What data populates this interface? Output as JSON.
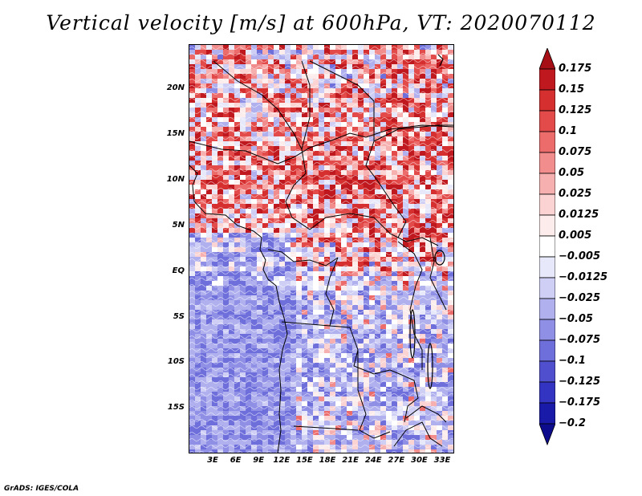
{
  "title": "Vertical velocity [m/s] at 600hPa, VT: 2020070112",
  "credit": "GrADS: IGES/COLA",
  "map": {
    "lat_labels": [
      "20N",
      "15N",
      "10N",
      "5N",
      "EQ",
      "5S",
      "10S",
      "15S"
    ],
    "lon_labels": [
      "3E",
      "6E",
      "9E",
      "12E",
      "15E",
      "18E",
      "21E",
      "24E",
      "27E",
      "30E",
      "33E"
    ]
  },
  "colorbar": {
    "labels": [
      "0.175",
      "0.15",
      "0.125",
      "0.1",
      "0.075",
      "0.05",
      "0.025",
      "0.0125",
      "0.005",
      "−0.005",
      "−0.0125",
      "−0.025",
      "−0.05",
      "−0.075",
      "−0.1",
      "−0.125",
      "−0.175",
      "−0.2"
    ],
    "colors": [
      "#a50f15",
      "#c0181f",
      "#d62f2f",
      "#e34a4a",
      "#ec6b6b",
      "#f28d8d",
      "#f7b0b0",
      "#fbd3d3",
      "#fdecec",
      "#ffffff",
      "#e8e8fb",
      "#cfcff6",
      "#b0b0ef",
      "#8f8fe6",
      "#6f6fdb",
      "#5050cf",
      "#3434c2",
      "#1a1aa8",
      "#0c0c8c"
    ]
  }
}
